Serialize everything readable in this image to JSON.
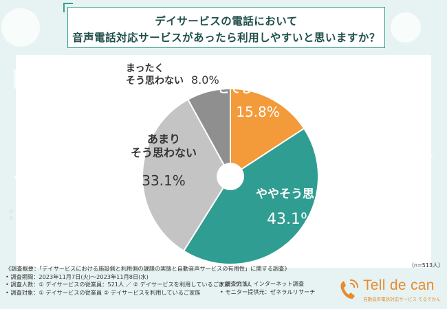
{
  "title": {
    "line1": "デイサービスの電話において",
    "line2": "音声電話対応サービスがあったら利用しやすいと思いますか？"
  },
  "chart_data": {
    "type": "pie",
    "slices": [
      {
        "label_lines": [
          "とてもそう思う"
        ],
        "value": 15.8,
        "value_text": "15.8%",
        "color": "#f39a3a",
        "label_color": "#ffffff"
      },
      {
        "label_lines": [
          "ややそう思う"
        ],
        "value": 43.1,
        "value_text": "43.1%",
        "color": "#2f9d91",
        "label_color": "#ffffff"
      },
      {
        "label_lines": [
          "あまり",
          "そう思わない"
        ],
        "value": 33.1,
        "value_text": "33.1%",
        "color": "#c4c4c4",
        "label_color": "#333333"
      },
      {
        "label_lines": [
          "まったく",
          "そう思わない"
        ],
        "value": 8.0,
        "value_text": "8.0%",
        "color": "#8f8f8f",
        "label_color": "#333333"
      }
    ]
  },
  "sample_note": "（n=513人）",
  "footer": {
    "lines": [
      "《調査概要：「デイサービスにおける施設側と利用側の課題の実態と自動音声サービスの有用性」に関する調査》",
      "• 調査期間：2023年11月7日(火)～2023年11月8日(水)",
      "• 調査人数：① デイサービスの従業員：521人 ／ ② デイサービスを利用しているご家族：513人",
      "• 調査対象：① デイサービスの従業員 ② デイサービスを利用しているご家族"
    ],
    "right_lines": [
      "• 調査方法：インターネット調査",
      "• モニター提供元：ゼネラルリサーチ"
    ]
  },
  "logo": {
    "name": "Tell de can",
    "tagline": "自動音声電話対応サービス てるでかん"
  }
}
